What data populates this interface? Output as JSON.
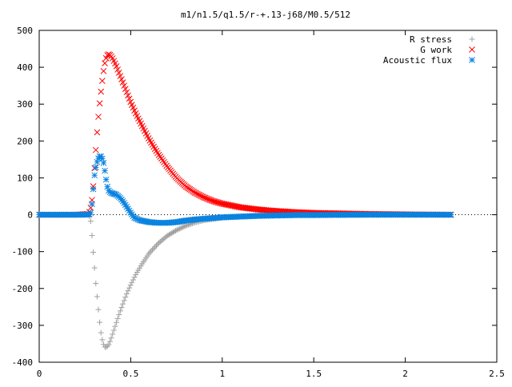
{
  "chart_data": {
    "type": "scatter",
    "title": "m1/n1.5/q1.5/r-+.13-j68/M0.5/512",
    "xlabel": "",
    "ylabel": "",
    "xlim": [
      0,
      2.5
    ],
    "ylim": [
      -400,
      500
    ],
    "xticks": [
      0,
      0.5,
      1,
      1.5,
      2,
      2.5
    ],
    "xtick_labels": [
      "0",
      "0.5",
      "1",
      "1.5",
      "2",
      "2.5"
    ],
    "yticks": [
      -400,
      -300,
      -200,
      -100,
      0,
      100,
      200,
      300,
      400,
      500
    ],
    "ytick_labels": [
      "-400",
      "-300",
      "-200",
      "-100",
      "0",
      "100",
      "200",
      "300",
      "400",
      "500"
    ],
    "grid": false,
    "legend": "top-right",
    "series": [
      {
        "name": "R stress",
        "marker": "plus",
        "color": "#a0a0a0",
        "x": [
          0.0,
          0.1,
          0.2,
          0.27,
          0.28,
          0.285,
          0.29,
          0.295,
          0.3,
          0.305,
          0.31,
          0.315,
          0.32,
          0.325,
          0.33,
          0.335,
          0.34,
          0.35,
          0.36,
          0.37,
          0.38,
          0.39,
          0.4,
          0.42,
          0.44,
          0.46,
          0.48,
          0.5,
          0.53,
          0.56,
          0.6,
          0.65,
          0.7,
          0.75,
          0.8,
          0.85,
          0.9,
          1.0,
          1.1,
          1.2,
          1.3,
          1.4,
          1.6,
          1.8,
          2.0,
          2.25
        ],
        "y": [
          0,
          0,
          0,
          0,
          -10,
          -40,
          -65,
          -100,
          -130,
          -160,
          -190,
          -215,
          -240,
          -265,
          -290,
          -310,
          -330,
          -350,
          -360,
          -358,
          -352,
          -340,
          -325,
          -295,
          -265,
          -238,
          -212,
          -190,
          -160,
          -135,
          -105,
          -78,
          -57,
          -42,
          -30,
          -21,
          -15,
          -8,
          -5,
          -3,
          -2,
          -1,
          -0.5,
          -0.2,
          0,
          0
        ]
      },
      {
        "name": "G work",
        "marker": "cross",
        "color": "#ff0000",
        "x": [
          0.0,
          0.1,
          0.2,
          0.27,
          0.28,
          0.29,
          0.295,
          0.3,
          0.305,
          0.31,
          0.315,
          0.32,
          0.325,
          0.33,
          0.34,
          0.35,
          0.36,
          0.37,
          0.38,
          0.39,
          0.4,
          0.42,
          0.44,
          0.46,
          0.48,
          0.5,
          0.53,
          0.56,
          0.6,
          0.65,
          0.7,
          0.75,
          0.8,
          0.85,
          0.9,
          0.95,
          1.0,
          1.1,
          1.2,
          1.3,
          1.4,
          1.5,
          1.6,
          1.8,
          2.0,
          2.25
        ],
        "y": [
          0,
          0,
          0,
          2,
          15,
          45,
          75,
          110,
          145,
          180,
          215,
          245,
          275,
          300,
          345,
          385,
          415,
          432,
          435,
          432,
          425,
          405,
          380,
          355,
          330,
          305,
          272,
          243,
          205,
          165,
          130,
          100,
          77,
          60,
          47,
          37,
          30,
          20,
          14,
          10,
          7,
          5,
          4,
          2,
          1,
          0
        ]
      },
      {
        "name": "Acoustic flux",
        "marker": "star",
        "color": "#0a83e0",
        "x": [
          0.0,
          0.1,
          0.2,
          0.25,
          0.28,
          0.29,
          0.3,
          0.31,
          0.32,
          0.33,
          0.34,
          0.35,
          0.36,
          0.37,
          0.38,
          0.39,
          0.4,
          0.42,
          0.44,
          0.46,
          0.48,
          0.5,
          0.52,
          0.55,
          0.6,
          0.65,
          0.7,
          0.75,
          0.8,
          0.85,
          0.9,
          1.0,
          1.1,
          1.2,
          1.3,
          1.4,
          1.5,
          1.6,
          1.8,
          2.0,
          2.25
        ],
        "y": [
          0,
          0,
          0,
          0,
          1,
          35,
          100,
          130,
          150,
          158,
          158,
          145,
          115,
          80,
          65,
          60,
          58,
          55,
          47,
          35,
          20,
          5,
          -8,
          -15,
          -20,
          -22,
          -22,
          -20,
          -16,
          -13,
          -11,
          -7,
          -5,
          -3,
          -2,
          -1,
          -1,
          -0.5,
          0,
          0,
          0
        ]
      }
    ]
  }
}
